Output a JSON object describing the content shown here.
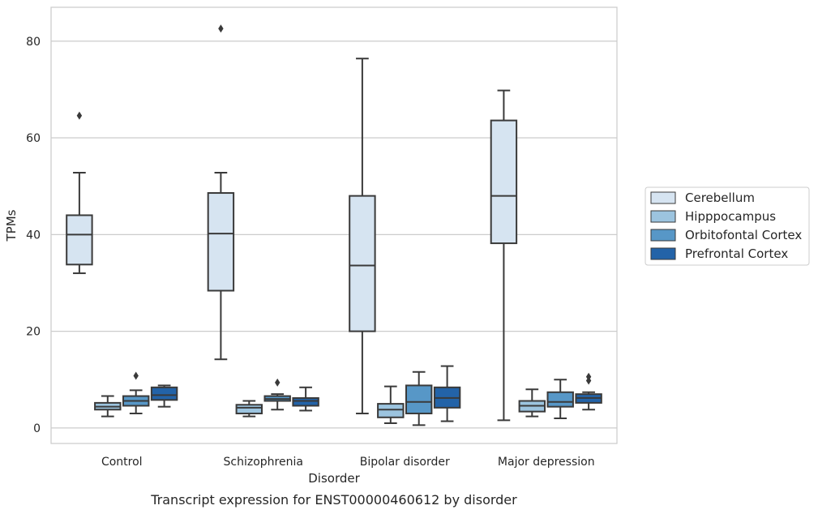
{
  "chart_data": {
    "type": "box",
    "xlabel": "Disorder",
    "ylabel": "TPMs",
    "caption": "Transcript expression for ENST00000460612 by disorder",
    "categories": [
      "Control",
      "Schizophrenia",
      "Bipolar disorder",
      "Major depression"
    ],
    "ylim": [
      -3.2,
      87
    ],
    "yticks": [
      0,
      20,
      40,
      60,
      80
    ],
    "grid": "horizontal",
    "legend_position": "right",
    "series": [
      {
        "name": "Cerebellum",
        "color": "#d6e4f1",
        "boxes": [
          {
            "whislo": 32.0,
            "q1": 33.8,
            "med": 40.0,
            "q3": 44.0,
            "whishi": 52.8,
            "fliers": [
              64.6
            ]
          },
          {
            "whislo": 14.2,
            "q1": 28.4,
            "med": 40.2,
            "q3": 48.6,
            "whishi": 52.8,
            "fliers": [
              82.6
            ]
          },
          {
            "whislo": 3.0,
            "q1": 20.0,
            "med": 33.6,
            "q3": 48.0,
            "whishi": 76.4,
            "fliers": []
          },
          {
            "whislo": 1.6,
            "q1": 38.2,
            "med": 48.0,
            "q3": 63.6,
            "whishi": 69.8,
            "fliers": []
          }
        ]
      },
      {
        "name": "Hipppocampus",
        "color": "#9cc4df",
        "boxes": [
          {
            "whislo": 2.4,
            "q1": 3.8,
            "med": 4.4,
            "q3": 5.2,
            "whishi": 6.6,
            "fliers": []
          },
          {
            "whislo": 2.4,
            "q1": 3.0,
            "med": 4.2,
            "q3": 4.8,
            "whishi": 5.6,
            "fliers": []
          },
          {
            "whislo": 1.0,
            "q1": 2.2,
            "med": 3.8,
            "q3": 5.0,
            "whishi": 8.6,
            "fliers": []
          },
          {
            "whislo": 2.4,
            "q1": 3.4,
            "med": 4.6,
            "q3": 5.6,
            "whishi": 8.0,
            "fliers": []
          }
        ]
      },
      {
        "name": "Orbitofontal Cortex",
        "color": "#5797c7",
        "boxes": [
          {
            "whislo": 3.0,
            "q1": 4.6,
            "med": 5.6,
            "q3": 6.6,
            "whishi": 7.8,
            "fliers": [
              10.8
            ]
          },
          {
            "whislo": 3.8,
            "q1": 5.6,
            "med": 6.0,
            "q3": 6.6,
            "whishi": 7.0,
            "fliers": [
              9.4
            ]
          },
          {
            "whislo": 0.6,
            "q1": 3.0,
            "med": 5.4,
            "q3": 8.8,
            "whishi": 11.6,
            "fliers": []
          },
          {
            "whislo": 2.0,
            "q1": 4.4,
            "med": 5.4,
            "q3": 7.4,
            "whishi": 10.0,
            "fliers": []
          }
        ]
      },
      {
        "name": "Prefrontal Cortex",
        "color": "#2363a8",
        "boxes": [
          {
            "whislo": 4.4,
            "q1": 5.8,
            "med": 6.8,
            "q3": 8.4,
            "whishi": 8.8,
            "fliers": []
          },
          {
            "whislo": 3.6,
            "q1": 4.6,
            "med": 5.6,
            "q3": 6.2,
            "whishi": 8.4,
            "fliers": []
          },
          {
            "whislo": 1.4,
            "q1": 4.2,
            "med": 6.2,
            "q3": 8.4,
            "whishi": 12.8,
            "fliers": []
          },
          {
            "whislo": 3.8,
            "q1": 5.2,
            "med": 6.2,
            "q3": 7.0,
            "whishi": 7.4,
            "fliers": [
              9.8,
              10.6
            ]
          }
        ]
      }
    ]
  }
}
